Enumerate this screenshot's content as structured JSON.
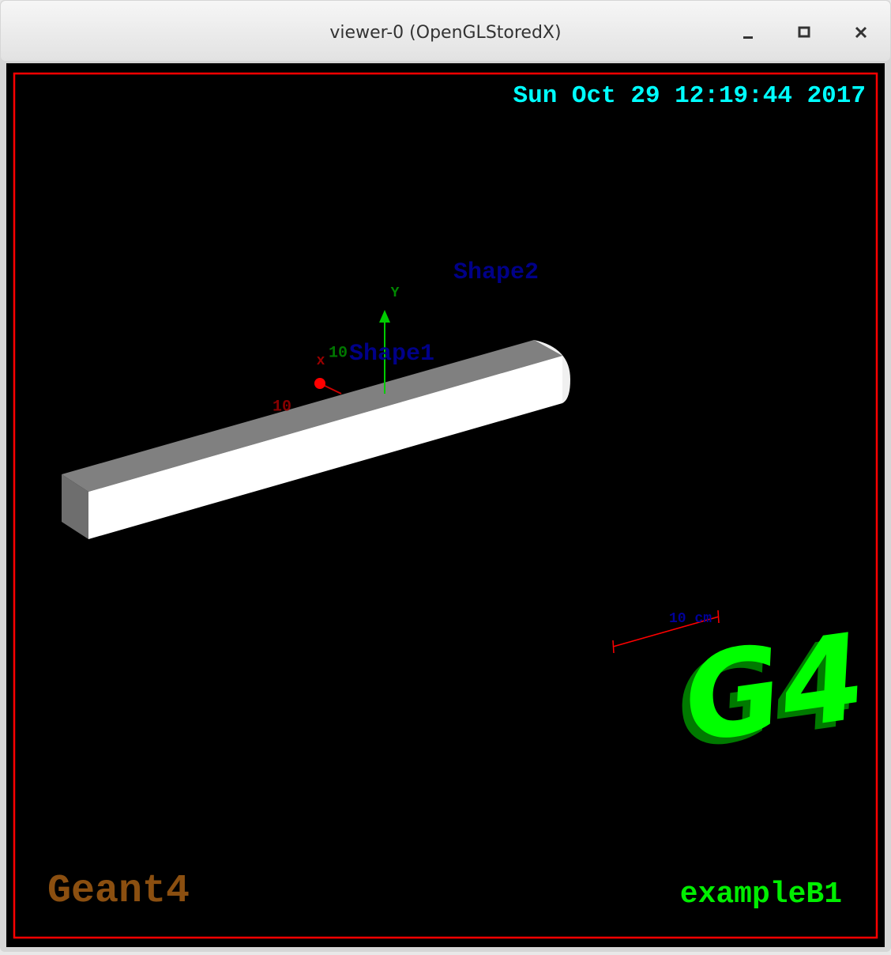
{
  "window": {
    "title": "viewer-0 (OpenGLStoredX)"
  },
  "viewer": {
    "date": "Sun Oct 29 12:19:44 2017",
    "shapes": [
      "Shape1",
      "Shape2"
    ],
    "axes": {
      "y_label": "Y",
      "x_label": "x",
      "y_length": "10",
      "x_length": "10"
    },
    "scale": "10 cm",
    "logo": "G4",
    "footer_left": "Geant4",
    "footer_right": "exampleB1"
  }
}
